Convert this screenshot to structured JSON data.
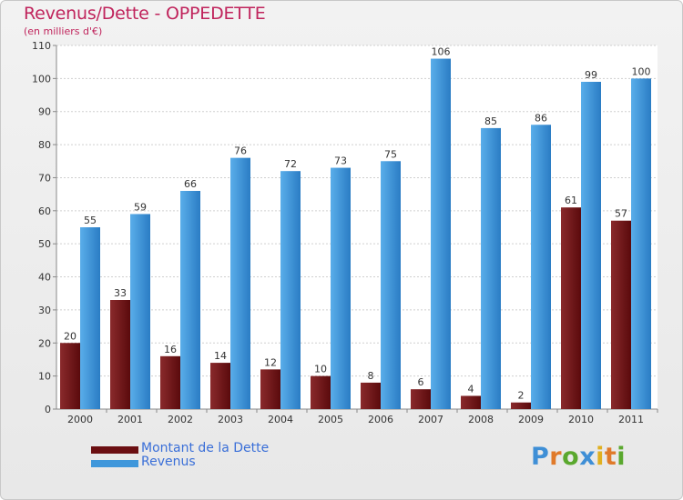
{
  "header": {
    "title": "Revenus/Dette - OPPEDETTE",
    "subtitle": "(en milliers d'€)"
  },
  "legend": [
    {
      "label": "Montant de la Dette",
      "color": "#6b0f12"
    },
    {
      "label": "Revenus",
      "color": "#3f97db"
    }
  ],
  "logo": {
    "text": "Proxiti",
    "letter_colors": [
      "#3f8fd6",
      "#e07a2a",
      "#5aa82e",
      "#3f8fd6",
      "#e0b020",
      "#e07a2a",
      "#5aa82e"
    ]
  },
  "chart_data": {
    "type": "bar",
    "categories": [
      "2000",
      "2001",
      "2002",
      "2003",
      "2004",
      "2005",
      "2006",
      "2007",
      "2008",
      "2009",
      "2010",
      "2011"
    ],
    "series": [
      {
        "name": "Montant de la Dette",
        "color": "#6b0f12",
        "values": [
          20,
          33,
          16,
          14,
          12,
          10,
          8,
          6,
          4,
          2,
          61,
          57
        ]
      },
      {
        "name": "Revenus",
        "color": "#3f97db",
        "values": [
          55,
          59,
          66,
          76,
          72,
          73,
          75,
          106,
          85,
          86,
          99,
          100
        ]
      }
    ],
    "ylim": [
      0,
      110
    ],
    "yticks": [
      0,
      10,
      20,
      30,
      40,
      50,
      60,
      70,
      80,
      90,
      100,
      110
    ],
    "grid": true,
    "data_labels": true,
    "legend_position": "bottom-left"
  }
}
